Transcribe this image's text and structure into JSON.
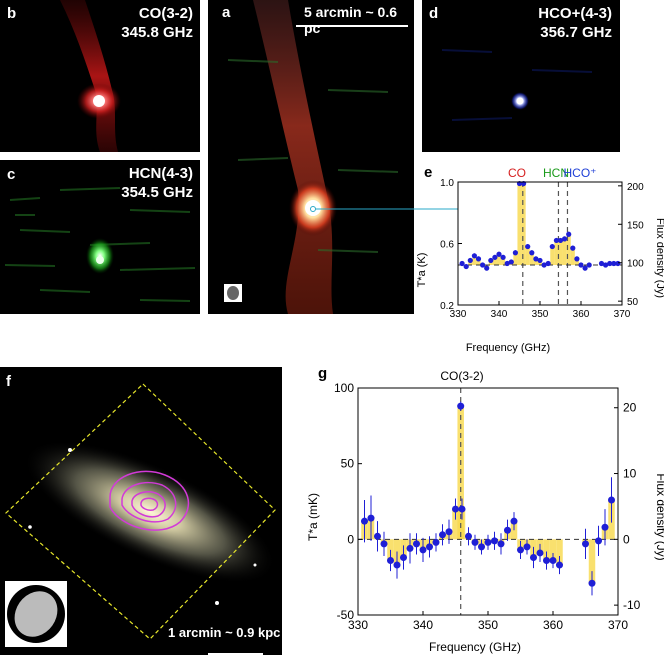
{
  "panels": {
    "a": {
      "label": "a",
      "scalebar": "5 arcmin ~ 0.6 pc"
    },
    "b": {
      "label": "b",
      "line1": "CO(3-2)",
      "line2": "345.8 GHz"
    },
    "c": {
      "label": "c",
      "line1": "HCN(4-3)",
      "line2": "354.5 GHz"
    },
    "d": {
      "label": "d",
      "line1": "HCO+(4-3)",
      "line2": "356.7 GHz"
    },
    "e": {
      "label": "e",
      "co": "CO",
      "hcn": "HCN",
      "hco": "HCO⁺"
    },
    "f": {
      "label": "f",
      "scalebar": "1 arcmin ~ 0.9 kpc"
    },
    "g": {
      "label": "g",
      "co": "CO(3-2)"
    }
  },
  "colors": {
    "co": "#d62020",
    "hcn": "#1a9a1a",
    "hco": "#1f3fd6",
    "bar": "#f8d84a",
    "point": "#1f1fd6",
    "contour": "#d23ad8",
    "dashed_box": "#e6e62a"
  },
  "chart_data": [
    {
      "type": "scatter",
      "panel": "e",
      "xlabel": "Frequency (GHz)",
      "ylabel": "T*a (K)",
      "y2label": "Flux density (Jy)",
      "xlim": [
        330,
        370
      ],
      "ylim": [
        0.2,
        1.0
      ],
      "x_ticks": [
        330,
        340,
        350,
        360,
        370
      ],
      "y_ticks": [
        0.2,
        0.6,
        1.0
      ],
      "y2_ticks": [
        50,
        100,
        150,
        200
      ],
      "baseline": 0.46,
      "line_markers": [
        345.8,
        354.5,
        356.7
      ],
      "x": [
        331,
        332,
        333,
        334,
        335,
        336,
        337,
        338,
        339,
        340,
        341,
        342,
        343,
        344,
        345,
        346,
        347,
        348,
        349,
        350,
        351,
        352,
        353,
        354,
        355,
        356,
        357,
        358,
        359,
        360,
        361,
        362,
        365,
        366,
        367,
        368,
        369
      ],
      "y": [
        0.47,
        0.45,
        0.49,
        0.52,
        0.5,
        0.46,
        0.44,
        0.49,
        0.51,
        0.53,
        0.51,
        0.47,
        0.48,
        0.54,
        0.99,
        0.99,
        0.58,
        0.54,
        0.5,
        0.49,
        0.46,
        0.47,
        0.58,
        0.62,
        0.62,
        0.63,
        0.66,
        0.57,
        0.5,
        0.46,
        0.44,
        0.46,
        0.47,
        0.46,
        0.47,
        0.47,
        0.47
      ]
    },
    {
      "type": "scatter",
      "panel": "g",
      "xlabel": "Frequency (GHz)",
      "ylabel": "T*a (mK)",
      "y2label": "Flux density (Jy)",
      "xlim": [
        330,
        370
      ],
      "ylim": [
        -50,
        100
      ],
      "x_ticks": [
        330,
        340,
        350,
        360,
        370
      ],
      "y_ticks": [
        -50,
        0,
        50,
        100
      ],
      "y2_ticks": [
        -10,
        0,
        10,
        20
      ],
      "line_marker": 345.8,
      "x": [
        331,
        332,
        333,
        334,
        335,
        336,
        337,
        338,
        339,
        340,
        341,
        342,
        343,
        344,
        345,
        345.8,
        346,
        347,
        348,
        349,
        350,
        351,
        352,
        353,
        354,
        355,
        356,
        357,
        358,
        359,
        360,
        361,
        365,
        366,
        367,
        368,
        369
      ],
      "y": [
        12,
        14,
        2,
        -3,
        -14,
        -17,
        -12,
        -6,
        -3,
        -7,
        -5,
        -2,
        3,
        5,
        20,
        88,
        20,
        2,
        -2,
        -5,
        -2,
        -1,
        -3,
        6,
        12,
        -7,
        -5,
        -12,
        -9,
        -14,
        -14,
        -17,
        -3,
        -29,
        -1,
        8,
        26
      ],
      "yerr": [
        14,
        15,
        10,
        8,
        7,
        9,
        8,
        10,
        7,
        8,
        7,
        6,
        7,
        8,
        7,
        3,
        7,
        6,
        5,
        5,
        5,
        6,
        7,
        7,
        6,
        6,
        5,
        7,
        6,
        6,
        5,
        6,
        10,
        8,
        10,
        12,
        15
      ]
    }
  ]
}
